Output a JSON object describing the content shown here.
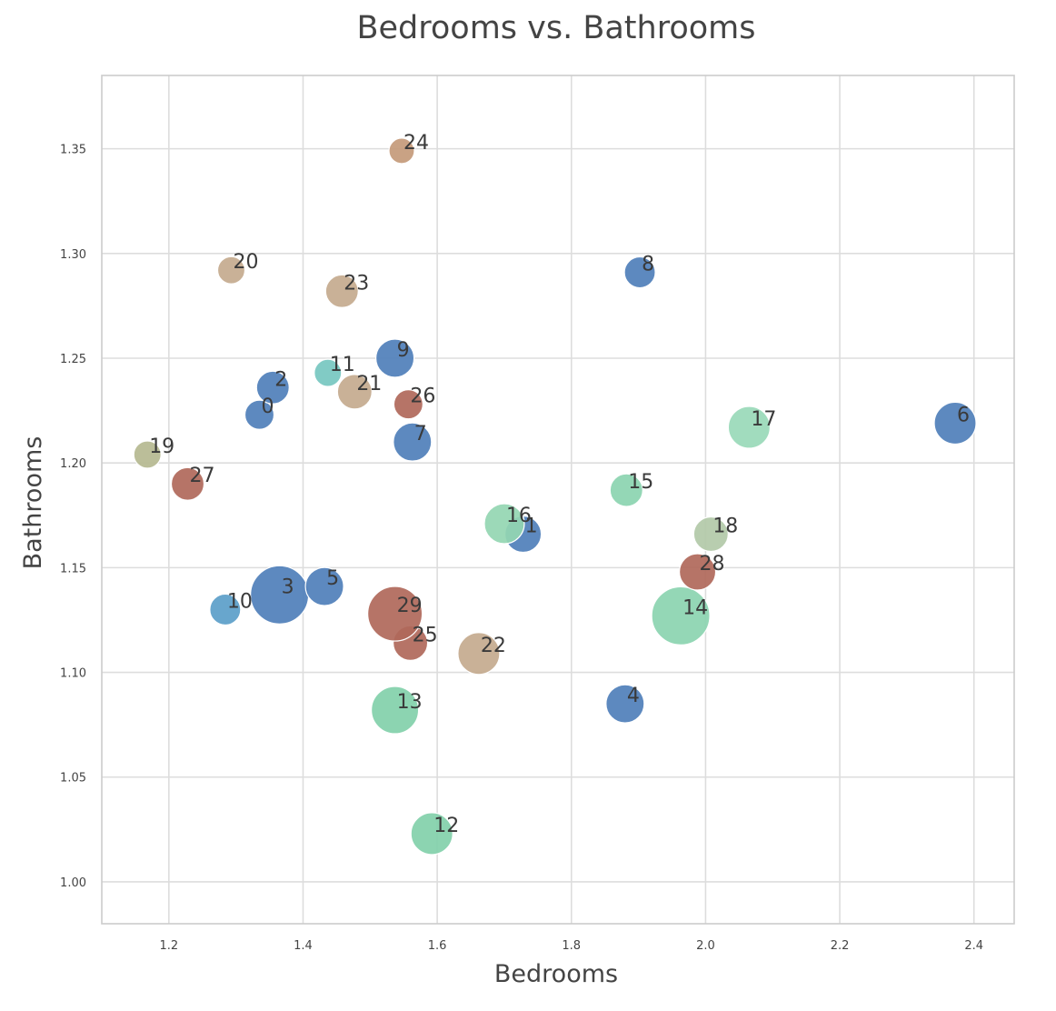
{
  "chart_data": {
    "type": "scatter",
    "title": "Bedrooms vs. Bathrooms",
    "xlabel": "Bedrooms",
    "ylabel": "Bathrooms",
    "xlim": [
      1.1,
      2.46
    ],
    "ylim": [
      0.98,
      1.385
    ],
    "xticks": [
      "1.2",
      "1.4",
      "1.6",
      "1.8",
      "2.0",
      "2.2",
      "2.4"
    ],
    "yticks": [
      "1.00",
      "1.05",
      "1.10",
      "1.15",
      "1.20",
      "1.25",
      "1.30",
      "1.35"
    ],
    "grid": true,
    "points": [
      {
        "label": "0",
        "x": 1.335,
        "y": 1.223,
        "size": 16,
        "color": "#4f7fba"
      },
      {
        "label": "1",
        "x": 1.728,
        "y": 1.166,
        "size": 20,
        "color": "#4f7fba"
      },
      {
        "label": "2",
        "x": 1.355,
        "y": 1.236,
        "size": 18,
        "color": "#4f7fba"
      },
      {
        "label": "3",
        "x": 1.365,
        "y": 1.137,
        "size": 32,
        "color": "#4f7fba"
      },
      {
        "label": "4",
        "x": 1.88,
        "y": 1.085,
        "size": 21,
        "color": "#4f7fba"
      },
      {
        "label": "5",
        "x": 1.432,
        "y": 1.141,
        "size": 21,
        "color": "#4f7fba"
      },
      {
        "label": "6",
        "x": 2.372,
        "y": 1.219,
        "size": 23,
        "color": "#4f7fba"
      },
      {
        "label": "7",
        "x": 1.563,
        "y": 1.21,
        "size": 21,
        "color": "#4f7fba"
      },
      {
        "label": "8",
        "x": 1.902,
        "y": 1.291,
        "size": 17,
        "color": "#4f7fba"
      },
      {
        "label": "9",
        "x": 1.537,
        "y": 1.25,
        "size": 21,
        "color": "#4f7fba"
      },
      {
        "label": "10",
        "x": 1.284,
        "y": 1.13,
        "size": 17,
        "color": "#5b9ec9"
      },
      {
        "label": "11",
        "x": 1.437,
        "y": 1.243,
        "size": 15,
        "color": "#76c7c0"
      },
      {
        "label": "12",
        "x": 1.592,
        "y": 1.023,
        "size": 23,
        "color": "#82d0aa"
      },
      {
        "label": "13",
        "x": 1.537,
        "y": 1.082,
        "size": 26,
        "color": "#82d0aa"
      },
      {
        "label": "14",
        "x": 1.963,
        "y": 1.127,
        "size": 32,
        "color": "#8bd4b0"
      },
      {
        "label": "15",
        "x": 1.882,
        "y": 1.187,
        "size": 18,
        "color": "#8bd4b0"
      },
      {
        "label": "16",
        "x": 1.7,
        "y": 1.171,
        "size": 22,
        "color": "#94d6b2"
      },
      {
        "label": "17",
        "x": 2.065,
        "y": 1.217,
        "size": 23,
        "color": "#99d9b8"
      },
      {
        "label": "18",
        "x": 2.008,
        "y": 1.166,
        "size": 19,
        "color": "#b2c9a8"
      },
      {
        "label": "19",
        "x": 1.168,
        "y": 1.204,
        "size": 15,
        "color": "#b5b890"
      },
      {
        "label": "20",
        "x": 1.293,
        "y": 1.292,
        "size": 15,
        "color": "#c4aa8e"
      },
      {
        "label": "21",
        "x": 1.477,
        "y": 1.234,
        "size": 19,
        "color": "#c4aa8e"
      },
      {
        "label": "22",
        "x": 1.662,
        "y": 1.109,
        "size": 23,
        "color": "#c4aa8e"
      },
      {
        "label": "23",
        "x": 1.458,
        "y": 1.282,
        "size": 18,
        "color": "#c4aa8e"
      },
      {
        "label": "24",
        "x": 1.547,
        "y": 1.349,
        "size": 14,
        "color": "#c49a7a"
      },
      {
        "label": "25",
        "x": 1.56,
        "y": 1.114,
        "size": 19,
        "color": "#b0685a"
      },
      {
        "label": "26",
        "x": 1.557,
        "y": 1.228,
        "size": 16,
        "color": "#b0685a"
      },
      {
        "label": "27",
        "x": 1.228,
        "y": 1.19,
        "size": 18,
        "color": "#b0685a"
      },
      {
        "label": "28",
        "x": 1.988,
        "y": 1.148,
        "size": 20,
        "color": "#b0685a"
      },
      {
        "label": "29",
        "x": 1.537,
        "y": 1.128,
        "size": 30,
        "color": "#b0685a"
      }
    ]
  }
}
